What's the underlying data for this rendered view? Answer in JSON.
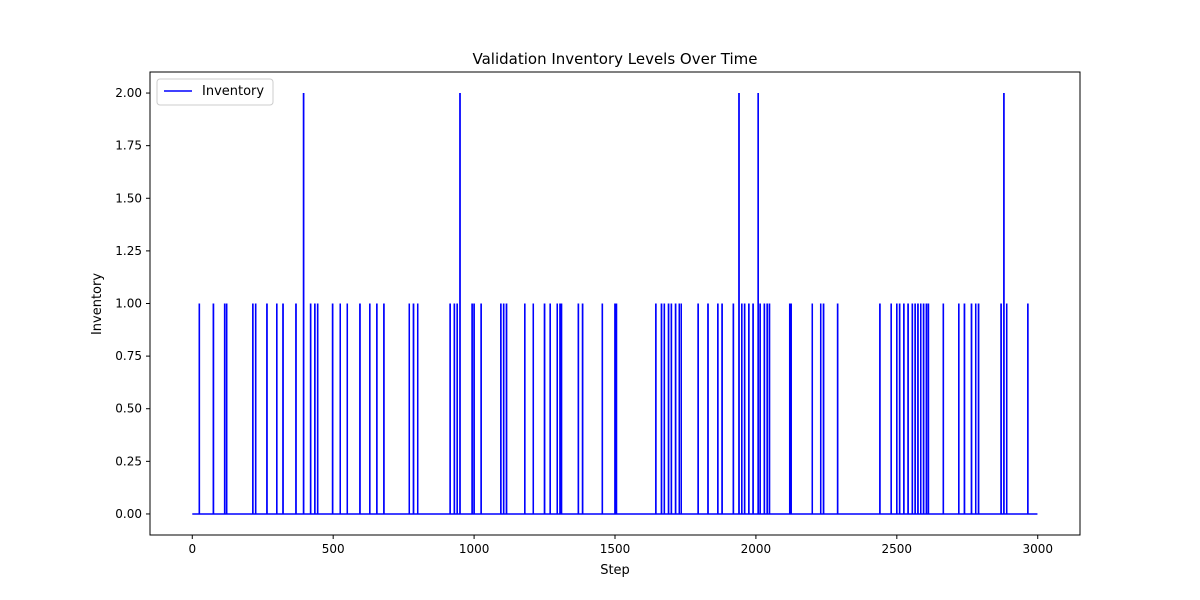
{
  "chart_data": {
    "type": "line",
    "title": "Validation Inventory Levels Over Time",
    "xlabel": "Step",
    "ylabel": "Inventory",
    "xlim": [
      -150,
      3150
    ],
    "ylim": [
      -0.1,
      2.1
    ],
    "x_ticks": [
      0,
      500,
      1000,
      1500,
      2000,
      2500,
      3000
    ],
    "x_tick_labels": [
      "0",
      "500",
      "1000",
      "1500",
      "2000",
      "2500",
      "3000"
    ],
    "y_ticks": [
      0,
      0.25,
      0.5,
      0.75,
      1.0,
      1.25,
      1.5,
      1.75,
      2.0
    ],
    "y_tick_labels": [
      "0.00",
      "0.25",
      "0.50",
      "0.75",
      "1.00",
      "1.25",
      "1.50",
      "1.75",
      "2.00"
    ],
    "grid": false,
    "legend": {
      "position": "upper-left",
      "entries": [
        "Inventory"
      ]
    },
    "color": "#0000ff",
    "x_range": [
      0,
      2999
    ],
    "baseline": 0,
    "series": [
      {
        "name": "Inventory",
        "spikes": [
          [
            25,
            1
          ],
          [
            75,
            1
          ],
          [
            115,
            1
          ],
          [
            122,
            1
          ],
          [
            215,
            1
          ],
          [
            225,
            1
          ],
          [
            265,
            1
          ],
          [
            300,
            1
          ],
          [
            322,
            1
          ],
          [
            368,
            1
          ],
          [
            395,
            2
          ],
          [
            420,
            1
          ],
          [
            435,
            1
          ],
          [
            445,
            1
          ],
          [
            498,
            1
          ],
          [
            525,
            1
          ],
          [
            550,
            1
          ],
          [
            595,
            1
          ],
          [
            630,
            1
          ],
          [
            655,
            1
          ],
          [
            680,
            1
          ],
          [
            770,
            1
          ],
          [
            785,
            1
          ],
          [
            800,
            1
          ],
          [
            915,
            1
          ],
          [
            930,
            1
          ],
          [
            940,
            1
          ],
          [
            950,
            2
          ],
          [
            993,
            1
          ],
          [
            1000,
            1
          ],
          [
            1025,
            1
          ],
          [
            1095,
            1
          ],
          [
            1105,
            1
          ],
          [
            1115,
            1
          ],
          [
            1180,
            1
          ],
          [
            1210,
            1
          ],
          [
            1250,
            1
          ],
          [
            1270,
            1
          ],
          [
            1295,
            1
          ],
          [
            1305,
            1
          ],
          [
            1310,
            1
          ],
          [
            1370,
            1
          ],
          [
            1385,
            1
          ],
          [
            1455,
            1
          ],
          [
            1500,
            1
          ],
          [
            1505,
            1
          ],
          [
            1645,
            1
          ],
          [
            1665,
            1
          ],
          [
            1675,
            1
          ],
          [
            1690,
            1
          ],
          [
            1700,
            1
          ],
          [
            1715,
            1
          ],
          [
            1728,
            1
          ],
          [
            1735,
            1
          ],
          [
            1795,
            1
          ],
          [
            1830,
            1
          ],
          [
            1865,
            1
          ],
          [
            1880,
            1
          ],
          [
            1920,
            1
          ],
          [
            1940,
            2
          ],
          [
            1950,
            1
          ],
          [
            1960,
            1
          ],
          [
            1975,
            1
          ],
          [
            1990,
            1
          ],
          [
            2008,
            2
          ],
          [
            2015,
            1
          ],
          [
            2030,
            1
          ],
          [
            2040,
            1
          ],
          [
            2048,
            1
          ],
          [
            2120,
            1
          ],
          [
            2125,
            1
          ],
          [
            2200,
            1
          ],
          [
            2230,
            1
          ],
          [
            2240,
            1
          ],
          [
            2290,
            1
          ],
          [
            2440,
            1
          ],
          [
            2480,
            1
          ],
          [
            2500,
            1
          ],
          [
            2510,
            1
          ],
          [
            2525,
            1
          ],
          [
            2540,
            1
          ],
          [
            2555,
            1
          ],
          [
            2565,
            1
          ],
          [
            2575,
            1
          ],
          [
            2585,
            1
          ],
          [
            2595,
            1
          ],
          [
            2605,
            1
          ],
          [
            2612,
            1
          ],
          [
            2665,
            1
          ],
          [
            2720,
            1
          ],
          [
            2740,
            1
          ],
          [
            2765,
            1
          ],
          [
            2780,
            1
          ],
          [
            2790,
            1
          ],
          [
            2870,
            1
          ],
          [
            2880,
            2
          ],
          [
            2890,
            1
          ],
          [
            2965,
            1
          ]
        ]
      }
    ]
  }
}
